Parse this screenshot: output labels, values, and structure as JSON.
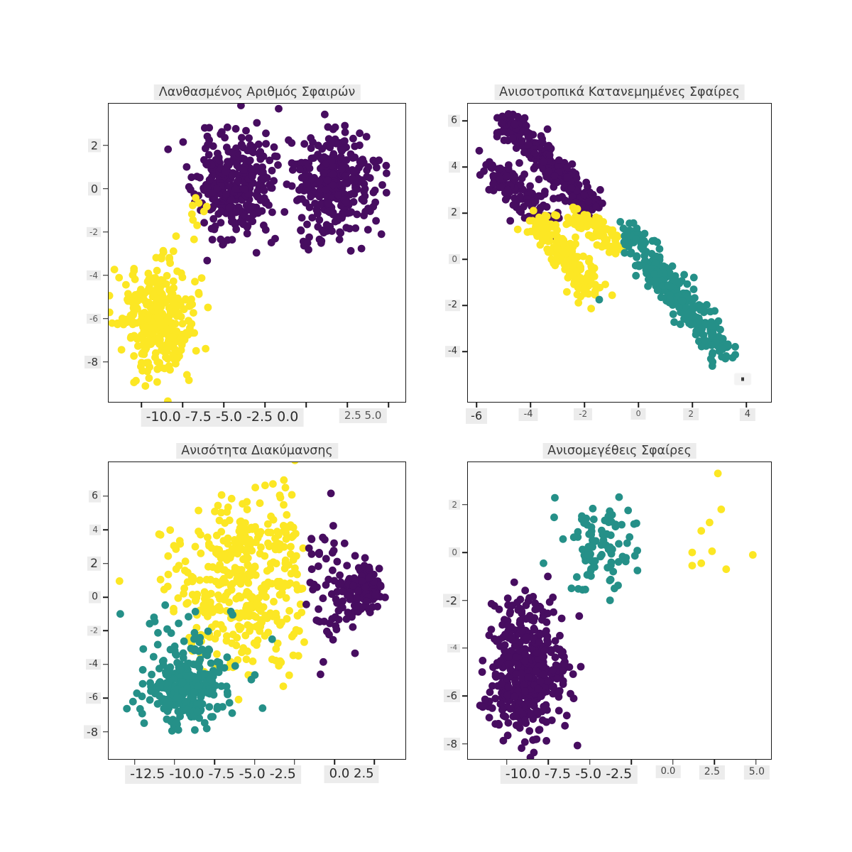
{
  "colors": {
    "series": {
      "purple": "#470d60",
      "teal": "#259088",
      "yellow": "#fce724"
    },
    "label_bg": "#ececec",
    "text_dark": "#2b2b2b",
    "text_grey": "#5a5a5a",
    "frame": "#1a1a1a"
  },
  "chart_data": [
    {
      "type": "scatter",
      "title": "Λανθασμένος Αριθμός Σφαιρών",
      "seed": 11,
      "xlim": [
        -12.0,
        6.03
      ],
      "ylim": [
        -9.84,
        3.93
      ],
      "x_ticks": [
        -10,
        -7.5,
        -5,
        -2.5,
        0,
        2.5,
        5
      ],
      "y_tick_labels": [
        {
          "text": "2",
          "v": 2,
          "size": 16
        },
        {
          "text": "0",
          "v": 0,
          "size": 16
        },
        {
          "text": "-2",
          "v": -2,
          "size": 12
        },
        {
          "text": "-4",
          "v": -4,
          "size": 12
        },
        {
          "text": "-6",
          "v": -6,
          "size": 12
        },
        {
          "text": "-8",
          "v": -8,
          "size": 15
        }
      ],
      "x_label_groups": [
        {
          "text": "-10.0 -7.5 -5.0 -2.5 0.0",
          "at": -5.1,
          "size": 19,
          "color": "#2b2b2b"
        },
        {
          "text": "2.5 5.0",
          "at": 3.45,
          "size": 15,
          "color": "#555555"
        }
      ],
      "clusters": [
        {
          "name": "blob-1-purple",
          "color": "purple",
          "kind": "blob",
          "n": 330,
          "cx": -4.4,
          "cy": 0.1,
          "sx": 1.15,
          "sy": 1.2
        },
        {
          "name": "blob-2-purple",
          "color": "purple",
          "kind": "blob",
          "n": 330,
          "cx": 1.7,
          "cy": 0.4,
          "sx": 1.25,
          "sy": 1.25
        },
        {
          "name": "blob-3-yellow",
          "color": "yellow",
          "kind": "blob",
          "n": 330,
          "cx": -9.0,
          "cy": -5.9,
          "sx": 1.1,
          "sy": 1.25
        },
        {
          "name": "mislabeled-edge-yellow",
          "color": "yellow",
          "kind": "blob",
          "n": 9,
          "cx": -6.9,
          "cy": -1.1,
          "sx": 0.6,
          "sy": 0.55
        }
      ]
    },
    {
      "type": "scatter",
      "title": "Ανισοτροπικά Κατανεμημένες Σφαίρες",
      "seed": 23,
      "xlim": [
        -6.32,
        4.92
      ],
      "ylim": [
        -6.18,
        6.74
      ],
      "x_ticks": [
        -6,
        -4,
        -2,
        0,
        2,
        4
      ],
      "y_tick_labels": [
        {
          "text": "6",
          "v": 6,
          "size": 14
        },
        {
          "text": "4",
          "v": 4,
          "size": 13
        },
        {
          "text": "2",
          "v": 2,
          "size": 14
        },
        {
          "text": "0",
          "v": 0,
          "size": 12
        },
        {
          "text": "-2",
          "v": -2,
          "size": 13
        },
        {
          "text": "-4",
          "v": -4,
          "size": 13
        }
      ],
      "x_label_groups": [
        {
          "text": "-6",
          "at": -6.0,
          "size": 16,
          "color": "#2b2b2b"
        },
        {
          "text": "-4",
          "at": -4.08,
          "size": 13,
          "color": "#444444"
        },
        {
          "text": "-2",
          "at": -2.05,
          "size": 12,
          "color": "#555555"
        },
        {
          "text": "0",
          "at": 0.0,
          "size": 11,
          "color": "#555555"
        },
        {
          "text": "2",
          "at": 1.95,
          "size": 12,
          "color": "#555555"
        },
        {
          "text": "4",
          "at": 4.05,
          "size": 13,
          "color": "#444444"
        }
      ],
      "artifact": {
        "x": 3.87,
        "y": -5.2
      },
      "clusters": [
        {
          "name": "streak-1-purple",
          "color": "purple",
          "kind": "segment",
          "n": 270,
          "x1": -4.9,
          "y1": 6.1,
          "x2": -1.7,
          "y2": 2.0,
          "noise": 0.28
        },
        {
          "name": "streak-2-top-purple",
          "color": "purple",
          "kind": "segment",
          "n": 140,
          "x1": -5.3,
          "y1": 3.9,
          "x2": -3.3,
          "y2": 1.5,
          "noise": 0.27
        },
        {
          "name": "streak-2-bottom-yellow",
          "color": "yellow",
          "kind": "segment",
          "n": 190,
          "x1": -3.9,
          "y1": 1.8,
          "x2": -1.7,
          "y2": -1.5,
          "noise": 0.3
        },
        {
          "name": "streak-3-top-yellow",
          "color": "yellow",
          "kind": "segment",
          "n": 80,
          "x1": -2.3,
          "y1": 1.9,
          "x2": -0.7,
          "y2": 0.4,
          "noise": 0.25
        },
        {
          "name": "streak-3-teal",
          "color": "teal",
          "kind": "segment",
          "n": 280,
          "x1": -0.5,
          "y1": 1.3,
          "x2": 3.3,
          "y2": -4.2,
          "noise": 0.32
        },
        {
          "name": "outlier-purple",
          "color": "purple",
          "kind": "points",
          "pts": [
            [
              -5.9,
              4.7
            ]
          ]
        },
        {
          "name": "outlier-teal",
          "color": "teal",
          "kind": "points",
          "pts": [
            [
              -1.45,
              -1.75
            ]
          ]
        }
      ]
    },
    {
      "type": "scatter",
      "title": "Ανισότητα Διακύμανσης",
      "seed": 5,
      "xlim": [
        -14.13,
        4.44
      ],
      "ylim": [
        -9.62,
        8.02
      ],
      "x_ticks": [
        -12.5,
        -10,
        -7.5,
        -5,
        -2.5,
        0,
        2.5
      ],
      "y_tick_labels": [
        {
          "text": "6",
          "v": 6,
          "size": 14
        },
        {
          "text": "4",
          "v": 4,
          "size": 12
        },
        {
          "text": "2",
          "v": 2,
          "size": 17
        },
        {
          "text": "0",
          "v": 0,
          "size": 14
        },
        {
          "text": "-2",
          "v": -2,
          "size": 11
        },
        {
          "text": "-4",
          "v": -4,
          "size": 13
        },
        {
          "text": "-6",
          "v": -6,
          "size": 13
        },
        {
          "text": "-8",
          "v": -8,
          "size": 16
        }
      ],
      "x_label_groups": [
        {
          "text": "-12.5 -10.0 -7.5 -5.0 -2.5",
          "at": -7.6,
          "size": 19,
          "color": "#2b2b2b"
        },
        {
          "text": "0.0 2.5",
          "at": 1.07,
          "size": 18,
          "color": "#2b2b2b"
        }
      ],
      "clusters": [
        {
          "name": "wide-yellow",
          "color": "yellow",
          "kind": "blob",
          "n": 400,
          "cx": -5.6,
          "cy": 1.1,
          "sx": 2.4,
          "sy": 2.5,
          "clip": {
            "xmax": -1.85
          }
        },
        {
          "name": "dense-purple",
          "color": "purple",
          "kind": "blob",
          "n": 150,
          "cx": 1.9,
          "cy": 0.5,
          "sx": 0.6,
          "sy": 0.65
        },
        {
          "name": "boundary-band-purple",
          "color": "purple",
          "kind": "blob",
          "n": 65,
          "cx": -0.4,
          "cy": 0.7,
          "sx": 1.1,
          "sy": 2.3,
          "clip": {
            "xmin": -1.8
          }
        },
        {
          "name": "dense-teal",
          "color": "teal",
          "kind": "blob",
          "n": 300,
          "cx": -9.3,
          "cy": -5.4,
          "sx": 1.15,
          "sy": 1.15
        },
        {
          "name": "scattered-teal",
          "color": "teal",
          "kind": "blob",
          "n": 16,
          "cx": -9.8,
          "cy": -1.8,
          "sx": 1.9,
          "sy": 0.8
        },
        {
          "name": "stray-teal",
          "color": "teal",
          "kind": "points",
          "pts": [
            [
              -5.2,
              -4.9
            ],
            [
              -4.5,
              -6.6
            ],
            [
              -13.4,
              -1.0
            ],
            [
              -3.9,
              -2.5
            ]
          ]
        },
        {
          "name": "stray-yellow",
          "color": "yellow",
          "kind": "points",
          "pts": [
            [
              -3.9,
              -3.7
            ],
            [
              -3.4,
              -3.8
            ],
            [
              -3.2,
              -5.3
            ]
          ]
        }
      ]
    },
    {
      "type": "scatter",
      "title": "Ανισομεγέθεις Σφαίρες",
      "seed": 42,
      "xlim": [
        -12.35,
        5.9
      ],
      "ylim": [
        -8.63,
        3.77
      ],
      "x_ticks": [
        -10,
        -7.5,
        -5,
        -2.5,
        0,
        2.5,
        5
      ],
      "y_tick_labels": [
        {
          "text": "2",
          "v": 2,
          "size": 12
        },
        {
          "text": "0",
          "v": 0,
          "size": 12
        },
        {
          "text": "-2",
          "v": -2,
          "size": 16
        },
        {
          "text": "-4",
          "v": -4,
          "size": 10
        },
        {
          "text": "-6",
          "v": -6,
          "size": 15
        },
        {
          "text": "-8",
          "v": -8,
          "size": 15
        }
      ],
      "x_label_groups": [
        {
          "text": "-10.0 -7.5 -5.0 -2.5",
          "at": -6.28,
          "size": 19,
          "color": "#2b2b2b"
        },
        {
          "text": "0.0",
          "at": -0.3,
          "size": 13,
          "color": "#444444"
        },
        {
          "text": "2.5",
          "at": 2.35,
          "size": 14,
          "color": "#444444"
        },
        {
          "text": "5.0",
          "at": 5.04,
          "size": 14,
          "color": "#444444"
        }
      ],
      "clusters": [
        {
          "name": "large-purple",
          "color": "purple",
          "kind": "blob",
          "n": 480,
          "cx": -8.9,
          "cy": -4.9,
          "sx": 1.2,
          "sy": 1.35
        },
        {
          "name": "medium-teal",
          "color": "teal",
          "kind": "blob",
          "n": 95,
          "cx": -4.5,
          "cy": 0.3,
          "sx": 1.05,
          "sy": 1.0
        },
        {
          "name": "stray-teal",
          "color": "teal",
          "kind": "points",
          "pts": [
            [
              -7.8,
              -0.45
            ]
          ]
        },
        {
          "name": "small-yellow",
          "color": "yellow",
          "kind": "points",
          "pts": [
            [
              2.7,
              3.3
            ],
            [
              2.9,
              1.8
            ],
            [
              2.2,
              1.25
            ],
            [
              1.7,
              0.9
            ],
            [
              1.15,
              0.0
            ],
            [
              2.35,
              0.05
            ],
            [
              4.8,
              -0.1
            ],
            [
              1.15,
              -0.55
            ],
            [
              1.7,
              -0.45
            ],
            [
              3.2,
              -0.7
            ]
          ]
        }
      ]
    }
  ]
}
